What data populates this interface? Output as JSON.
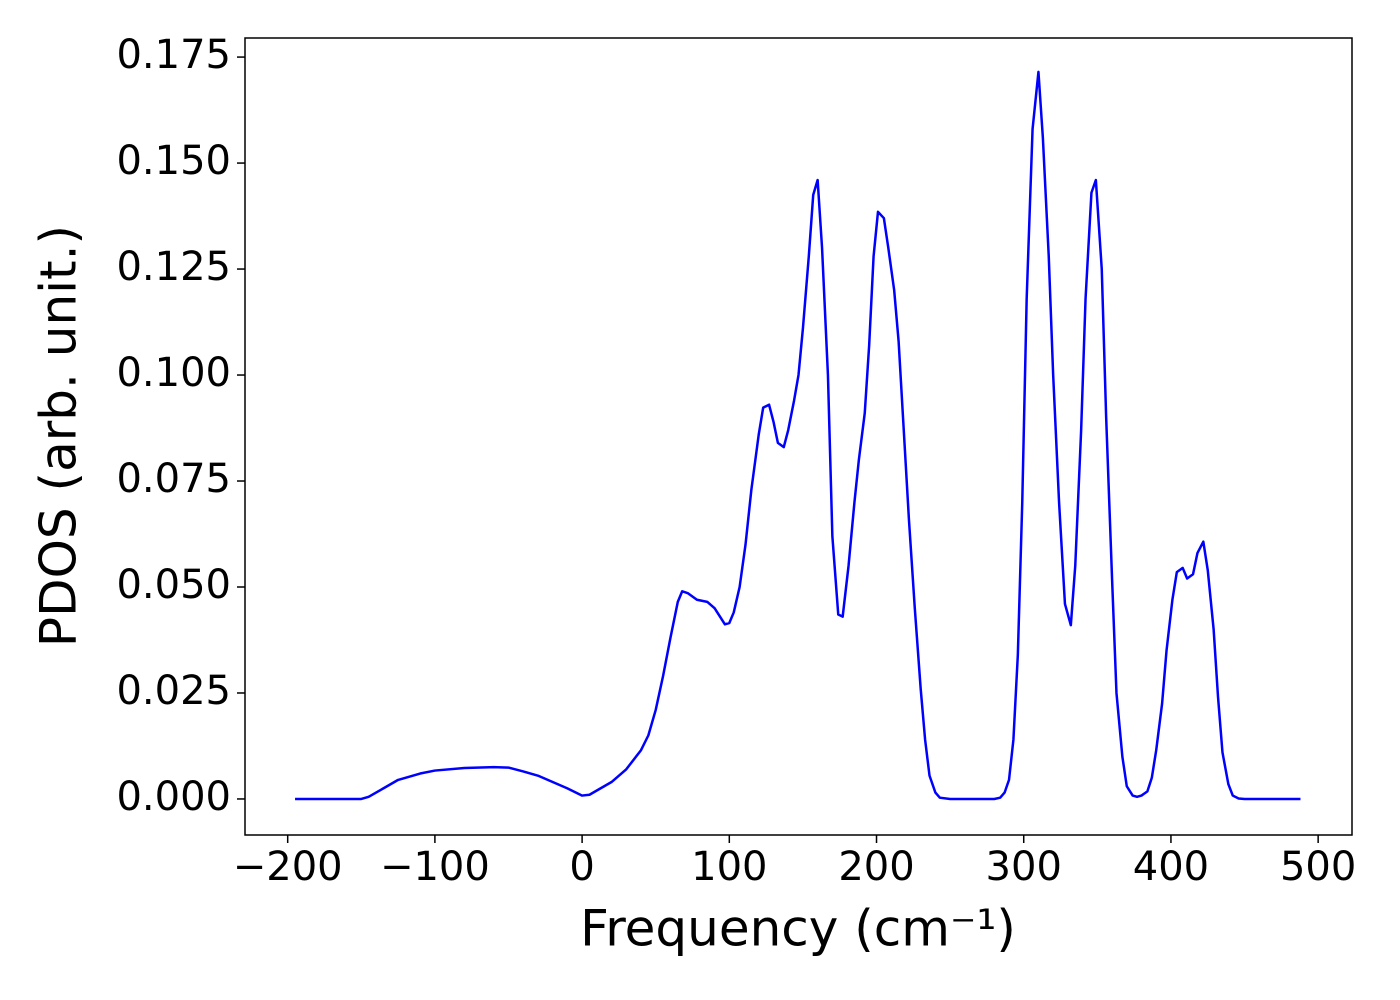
{
  "chart_data": {
    "type": "line",
    "xlabel": "Frequency (cm⁻¹)",
    "ylabel": "PDOS (arb. unit.)",
    "xlim": [
      -229,
      523
    ],
    "ylim": [
      -0.0085,
      0.1795
    ],
    "xticks": [
      {
        "value": -200,
        "label": "−200"
      },
      {
        "value": -100,
        "label": "−100"
      },
      0,
      100,
      200,
      300,
      400,
      500
    ],
    "yticks": [
      {
        "value": 0,
        "label": "0.000"
      },
      {
        "value": 0.025,
        "label": "0.025"
      },
      {
        "value": 0.05,
        "label": "0.050"
      },
      {
        "value": 0.075,
        "label": "0.075"
      },
      {
        "value": 0.1,
        "label": "0.100"
      },
      {
        "value": 0.125,
        "label": "0.125"
      },
      {
        "value": 0.15,
        "label": "0.150"
      },
      {
        "value": 0.175,
        "label": "0.175"
      }
    ],
    "grid": false,
    "series": [
      {
        "color": "#0000ff",
        "x": [
          -195,
          -170,
          -150,
          -145,
          -135,
          -125,
          -110,
          -100,
          -80,
          -60,
          -50,
          -40,
          -30,
          -20,
          -10,
          0,
          5,
          10,
          20,
          30,
          40,
          45,
          50,
          55,
          60,
          65,
          68,
          72,
          78,
          85,
          90,
          97,
          100,
          103,
          107,
          111,
          115,
          120,
          123,
          127,
          130,
          133,
          137,
          140,
          144,
          147,
          150,
          154,
          157,
          160,
          163,
          167,
          170,
          174,
          177,
          181,
          185,
          188,
          192,
          195,
          198,
          201,
          205,
          208,
          212,
          215,
          218,
          222,
          226,
          230,
          233,
          236,
          240,
          243,
          250,
          280,
          284,
          287,
          290,
          293,
          296,
          299,
          302,
          306,
          310,
          313,
          317,
          320,
          324,
          328,
          332,
          335,
          339,
          342,
          346,
          349,
          353,
          356,
          360,
          363,
          367,
          370,
          374,
          377,
          380,
          384,
          387,
          390,
          394,
          397,
          401,
          404,
          408,
          411,
          415,
          418,
          422,
          425,
          429,
          432,
          435,
          439,
          442,
          446,
          450,
          488
        ],
        "values": [
          0,
          0,
          0,
          0.0005,
          0.0025,
          0.0045,
          0.006,
          0.0067,
          0.0073,
          0.0075,
          0.0074,
          0.0065,
          0.0055,
          0.004,
          0.0025,
          0.0008,
          0.001,
          0.002,
          0.004,
          0.007,
          0.0115,
          0.015,
          0.021,
          0.029,
          0.038,
          0.0465,
          0.049,
          0.0485,
          0.047,
          0.0465,
          0.045,
          0.0412,
          0.0415,
          0.044,
          0.05,
          0.06,
          0.073,
          0.086,
          0.0923,
          0.093,
          0.089,
          0.084,
          0.083,
          0.087,
          0.094,
          0.1,
          0.111,
          0.128,
          0.1425,
          0.146,
          0.13,
          0.1,
          0.062,
          0.0435,
          0.043,
          0.055,
          0.07,
          0.08,
          0.091,
          0.107,
          0.128,
          0.1385,
          0.137,
          0.13,
          0.12,
          0.108,
          0.09,
          0.066,
          0.045,
          0.026,
          0.014,
          0.0055,
          0.0015,
          0.0003,
          0,
          0,
          0.0003,
          0.0015,
          0.0045,
          0.014,
          0.034,
          0.07,
          0.118,
          0.158,
          0.1715,
          0.156,
          0.128,
          0.1,
          0.07,
          0.046,
          0.041,
          0.055,
          0.087,
          0.118,
          0.143,
          0.146,
          0.125,
          0.09,
          0.052,
          0.025,
          0.01,
          0.003,
          0.0008,
          0.0005,
          0.0008,
          0.0018,
          0.005,
          0.0115,
          0.0225,
          0.035,
          0.047,
          0.0535,
          0.0545,
          0.052,
          0.053,
          0.058,
          0.0607,
          0.054,
          0.04,
          0.024,
          0.011,
          0.0035,
          0.0008,
          0.0001,
          0,
          0
        ]
      }
    ]
  }
}
